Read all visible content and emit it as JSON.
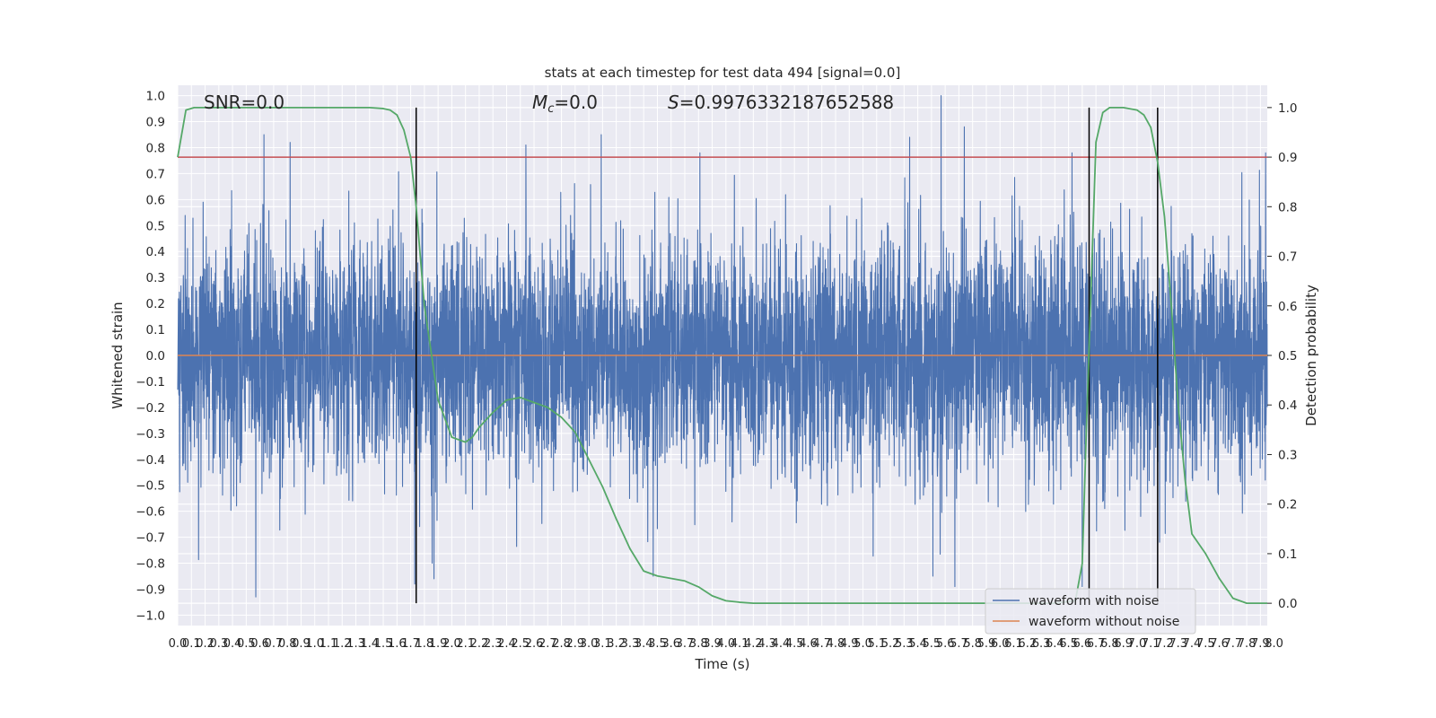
{
  "chart_data": {
    "type": "line",
    "title": "stats at each timestep for test data 494 [signal=0.0]",
    "xlabel": "Time (s)",
    "ylabel": "Whitened strain",
    "y2label": "Detection probability",
    "xlim": [
      0.0,
      7.95
    ],
    "ylim": [
      -1.04,
      1.04
    ],
    "y2lim": [
      -0.045,
      1.045
    ],
    "x_tick_step": 0.1,
    "y_ticks": [
      "1.0",
      "0.9",
      "0.8",
      "0.7",
      "0.6",
      "0.5",
      "0.4",
      "0.3",
      "0.2",
      "0.1",
      "0.0",
      "−0.1",
      "−0.2",
      "−0.3",
      "−0.4",
      "−0.5",
      "−0.6",
      "−0.7",
      "−0.8",
      "−0.9",
      "−1.0"
    ],
    "y2_ticks": [
      "1.0",
      "0.9",
      "0.8",
      "0.7",
      "0.6",
      "0.5",
      "0.4",
      "0.3",
      "0.2",
      "0.1",
      "0.0"
    ],
    "annotations": {
      "snr": "SNR=0.0",
      "mc_symbol": "M",
      "mc_sub": "c",
      "mc_value": "=0.0",
      "s_symbol": "S",
      "s_value": "=0.9976332187652588"
    },
    "series": [
      {
        "name": "waveform with noise",
        "color": "#4c72b0",
        "kind": "noise",
        "sample_rate_hz": 2048,
        "approx_std": 0.22,
        "notable_peaks": [
          [
            0.63,
            0.85
          ],
          [
            0.82,
            0.82
          ],
          [
            2.54,
            0.81
          ],
          [
            3.09,
            0.85
          ],
          [
            5.34,
            0.84
          ],
          [
            5.57,
            1.0
          ],
          [
            5.74,
            0.88
          ],
          [
            0.57,
            -0.93
          ],
          [
            1.73,
            -0.88
          ],
          [
            1.87,
            -0.86
          ],
          [
            3.47,
            -0.85
          ],
          [
            5.51,
            -0.85
          ],
          [
            5.67,
            -0.89
          ],
          [
            6.6,
            -0.89
          ]
        ]
      },
      {
        "name": "waveform without noise",
        "color": "#dd8452",
        "kind": "constant",
        "y": 0.0
      },
      {
        "name": "detection probability",
        "color": "#55a868",
        "axis": "right",
        "x": [
          0.0,
          0.06,
          0.12,
          0.2,
          0.4,
          0.8,
          1.2,
          1.4,
          1.5,
          1.55,
          1.6,
          1.65,
          1.7,
          1.74,
          1.8,
          1.9,
          2.0,
          2.1,
          2.15,
          2.2,
          2.3,
          2.4,
          2.5,
          2.6,
          2.7,
          2.8,
          2.9,
          3.0,
          3.1,
          3.2,
          3.3,
          3.4,
          3.5,
          3.6,
          3.7,
          3.8,
          3.9,
          4.0,
          4.1,
          4.2,
          4.5,
          5.0,
          5.5,
          6.0,
          6.4,
          6.55,
          6.6,
          6.63,
          6.66,
          6.7,
          6.75,
          6.8,
          6.9,
          7.0,
          7.05,
          7.1,
          7.15,
          7.2,
          7.25,
          7.3,
          7.35,
          7.4,
          7.5,
          7.6,
          7.7,
          7.8,
          7.95
        ],
        "y": [
          0.9,
          0.995,
          1.0,
          1.0,
          1.0,
          1.0,
          1.0,
          1.0,
          0.998,
          0.995,
          0.985,
          0.955,
          0.9,
          0.8,
          0.6,
          0.41,
          0.335,
          0.325,
          0.335,
          0.355,
          0.385,
          0.41,
          0.415,
          0.405,
          0.395,
          0.375,
          0.345,
          0.29,
          0.235,
          0.17,
          0.11,
          0.065,
          0.055,
          0.05,
          0.045,
          0.033,
          0.015,
          0.005,
          0.002,
          0.0,
          0.0,
          0.0,
          0.0,
          0.0,
          0.0,
          0.005,
          0.08,
          0.35,
          0.6,
          0.93,
          0.99,
          1.0,
          1.0,
          0.995,
          0.985,
          0.96,
          0.89,
          0.78,
          0.6,
          0.4,
          0.25,
          0.14,
          0.1,
          0.05,
          0.01,
          0.0,
          0.0
        ]
      }
    ],
    "horizontal_lines": [
      {
        "axis": "right",
        "y": 0.9,
        "color": "#c44e52"
      }
    ],
    "vertical_lines": [
      {
        "x": 1.74,
        "color": "#000000"
      },
      {
        "x": 6.65,
        "color": "#000000"
      },
      {
        "x": 7.15,
        "color": "#000000"
      }
    ],
    "legend": {
      "position": "lower right",
      "items": [
        {
          "label": "waveform with noise",
          "color": "#4c72b0"
        },
        {
          "label": "waveform without noise",
          "color": "#dd8452"
        }
      ]
    },
    "grid": true,
    "background": "#eaeaf2"
  }
}
